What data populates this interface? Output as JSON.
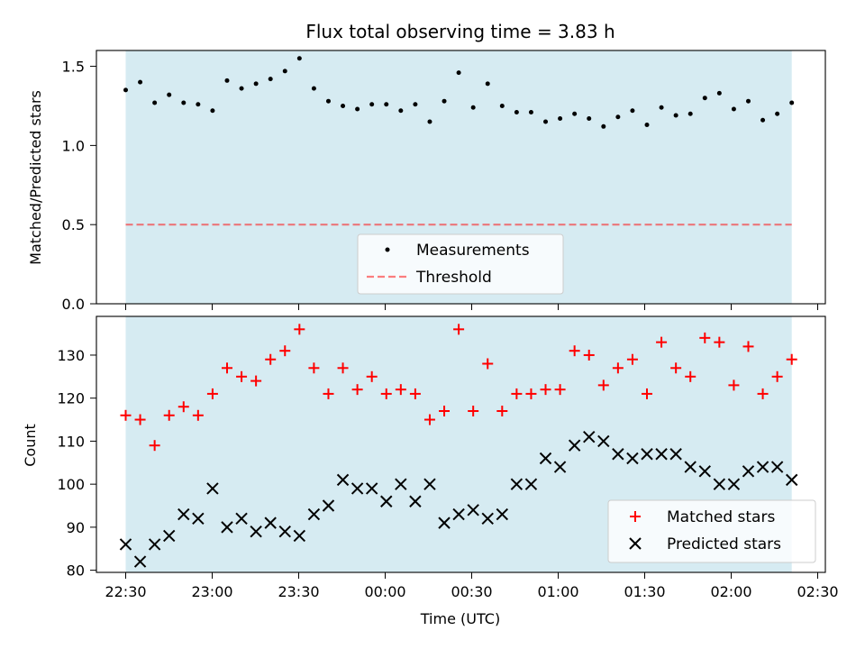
{
  "title": "Flux total observing time = 3.83 h",
  "colors": {
    "shade": "#add8e6",
    "measurement": "#000000",
    "threshold": "#ff0000",
    "matched": "#ff0000",
    "predicted": "#000000",
    "legend_bg": "#ffffff"
  },
  "xlabel": "Time (UTC)",
  "x_ticks": [
    "22:30",
    "23:00",
    "23:30",
    "00:00",
    "00:30",
    "01:00",
    "01:30",
    "02:00",
    "02:30"
  ],
  "chart_data": [
    {
      "type": "scatter",
      "panel": "top",
      "ylabel": "Matched/Predicted stars",
      "ylim": [
        0,
        1.6
      ],
      "y_ticks": [
        "0.0",
        "0.5",
        "1.0",
        "1.5"
      ],
      "shaded_span": [
        "22:30",
        "02:21"
      ],
      "threshold": 0.5,
      "series": [
        {
          "name": "Measurements",
          "marker": "dot",
          "values": [
            1.35,
            1.4,
            1.27,
            1.32,
            1.27,
            1.26,
            1.22,
            1.41,
            1.36,
            1.39,
            1.42,
            1.47,
            1.55,
            1.36,
            1.28,
            1.25,
            1.23,
            1.26,
            1.26,
            1.22,
            1.26,
            1.15,
            1.28,
            1.46,
            1.24,
            1.39,
            1.25,
            1.21,
            1.21,
            1.15,
            1.17,
            1.2,
            1.17,
            1.12,
            1.18,
            1.22,
            1.13,
            1.24,
            1.19,
            1.2,
            1.3,
            1.33,
            1.23,
            1.28,
            1.16,
            1.2,
            1.27
          ]
        },
        {
          "name": "Threshold",
          "marker": "dashed-line",
          "values": [
            0.5
          ]
        }
      ],
      "legend": {
        "placement": "lower-center",
        "entries": [
          "Measurements",
          "Threshold"
        ]
      }
    },
    {
      "type": "scatter",
      "panel": "bottom",
      "ylabel": "Count",
      "ylim": [
        79.5,
        139
      ],
      "y_ticks": [
        "80",
        "90",
        "100",
        "110",
        "120",
        "130"
      ],
      "shaded_span": [
        "22:30",
        "02:21"
      ],
      "series": [
        {
          "name": "Matched stars",
          "marker": "plus",
          "values": [
            116,
            115,
            109,
            116,
            118,
            116,
            121,
            127,
            125,
            124,
            129,
            131,
            136,
            127,
            121,
            127,
            122,
            125,
            121,
            122,
            121,
            115,
            117,
            136,
            117,
            128,
            117,
            121,
            121,
            122,
            122,
            131,
            130,
            123,
            127,
            129,
            121,
            133,
            127,
            125,
            134,
            133,
            123,
            132,
            121,
            125,
            129
          ]
        },
        {
          "name": "Predicted stars",
          "marker": "x",
          "values": [
            86,
            82,
            86,
            88,
            93,
            92,
            99,
            90,
            92,
            89,
            91,
            89,
            88,
            93,
            95,
            101,
            99,
            99,
            96,
            100,
            96,
            100,
            91,
            93,
            94,
            92,
            93,
            100,
            100,
            106,
            104,
            109,
            111,
            110,
            107,
            106,
            107,
            107,
            107,
            104,
            103,
            100,
            100,
            103,
            104,
            104,
            101
          ]
        }
      ],
      "legend": {
        "placement": "lower-right",
        "entries": [
          "Matched stars",
          "Predicted stars"
        ]
      }
    }
  ]
}
